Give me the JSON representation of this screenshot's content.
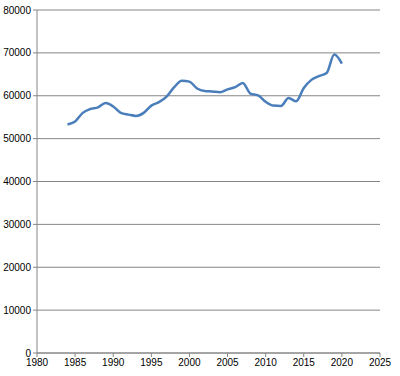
{
  "chart_data": {
    "type": "line",
    "x": [
      1984,
      1985,
      1986,
      1987,
      1988,
      1989,
      1990,
      1991,
      1992,
      1993,
      1994,
      1995,
      1996,
      1997,
      1998,
      1999,
      2000,
      2001,
      2002,
      2003,
      2004,
      2005,
      2006,
      2007,
      2008,
      2009,
      2010,
      2011,
      2012,
      2013,
      2014,
      2015,
      2016,
      2017,
      2018,
      2019,
      2020
    ],
    "values": [
      53300,
      54000,
      56000,
      56900,
      57300,
      58300,
      57500,
      56000,
      55600,
      55300,
      56000,
      57700,
      58500,
      59800,
      62000,
      63500,
      63300,
      61700,
      61100,
      61000,
      60800,
      61500,
      62000,
      63000,
      60500,
      60100,
      58600,
      57700,
      57600,
      59500,
      58700,
      61800,
      63700,
      64600,
      65300,
      69600,
      67500
    ],
    "color": "#4a7ebb",
    "xlim": [
      1980,
      2025
    ],
    "xticks": [
      1980,
      1985,
      1990,
      1995,
      2000,
      2005,
      2010,
      2015,
      2020,
      2025
    ],
    "ylim": [
      0,
      80000
    ],
    "yticks": [
      0,
      10000,
      20000,
      30000,
      40000,
      50000,
      60000,
      70000,
      80000
    ],
    "grid": true
  }
}
